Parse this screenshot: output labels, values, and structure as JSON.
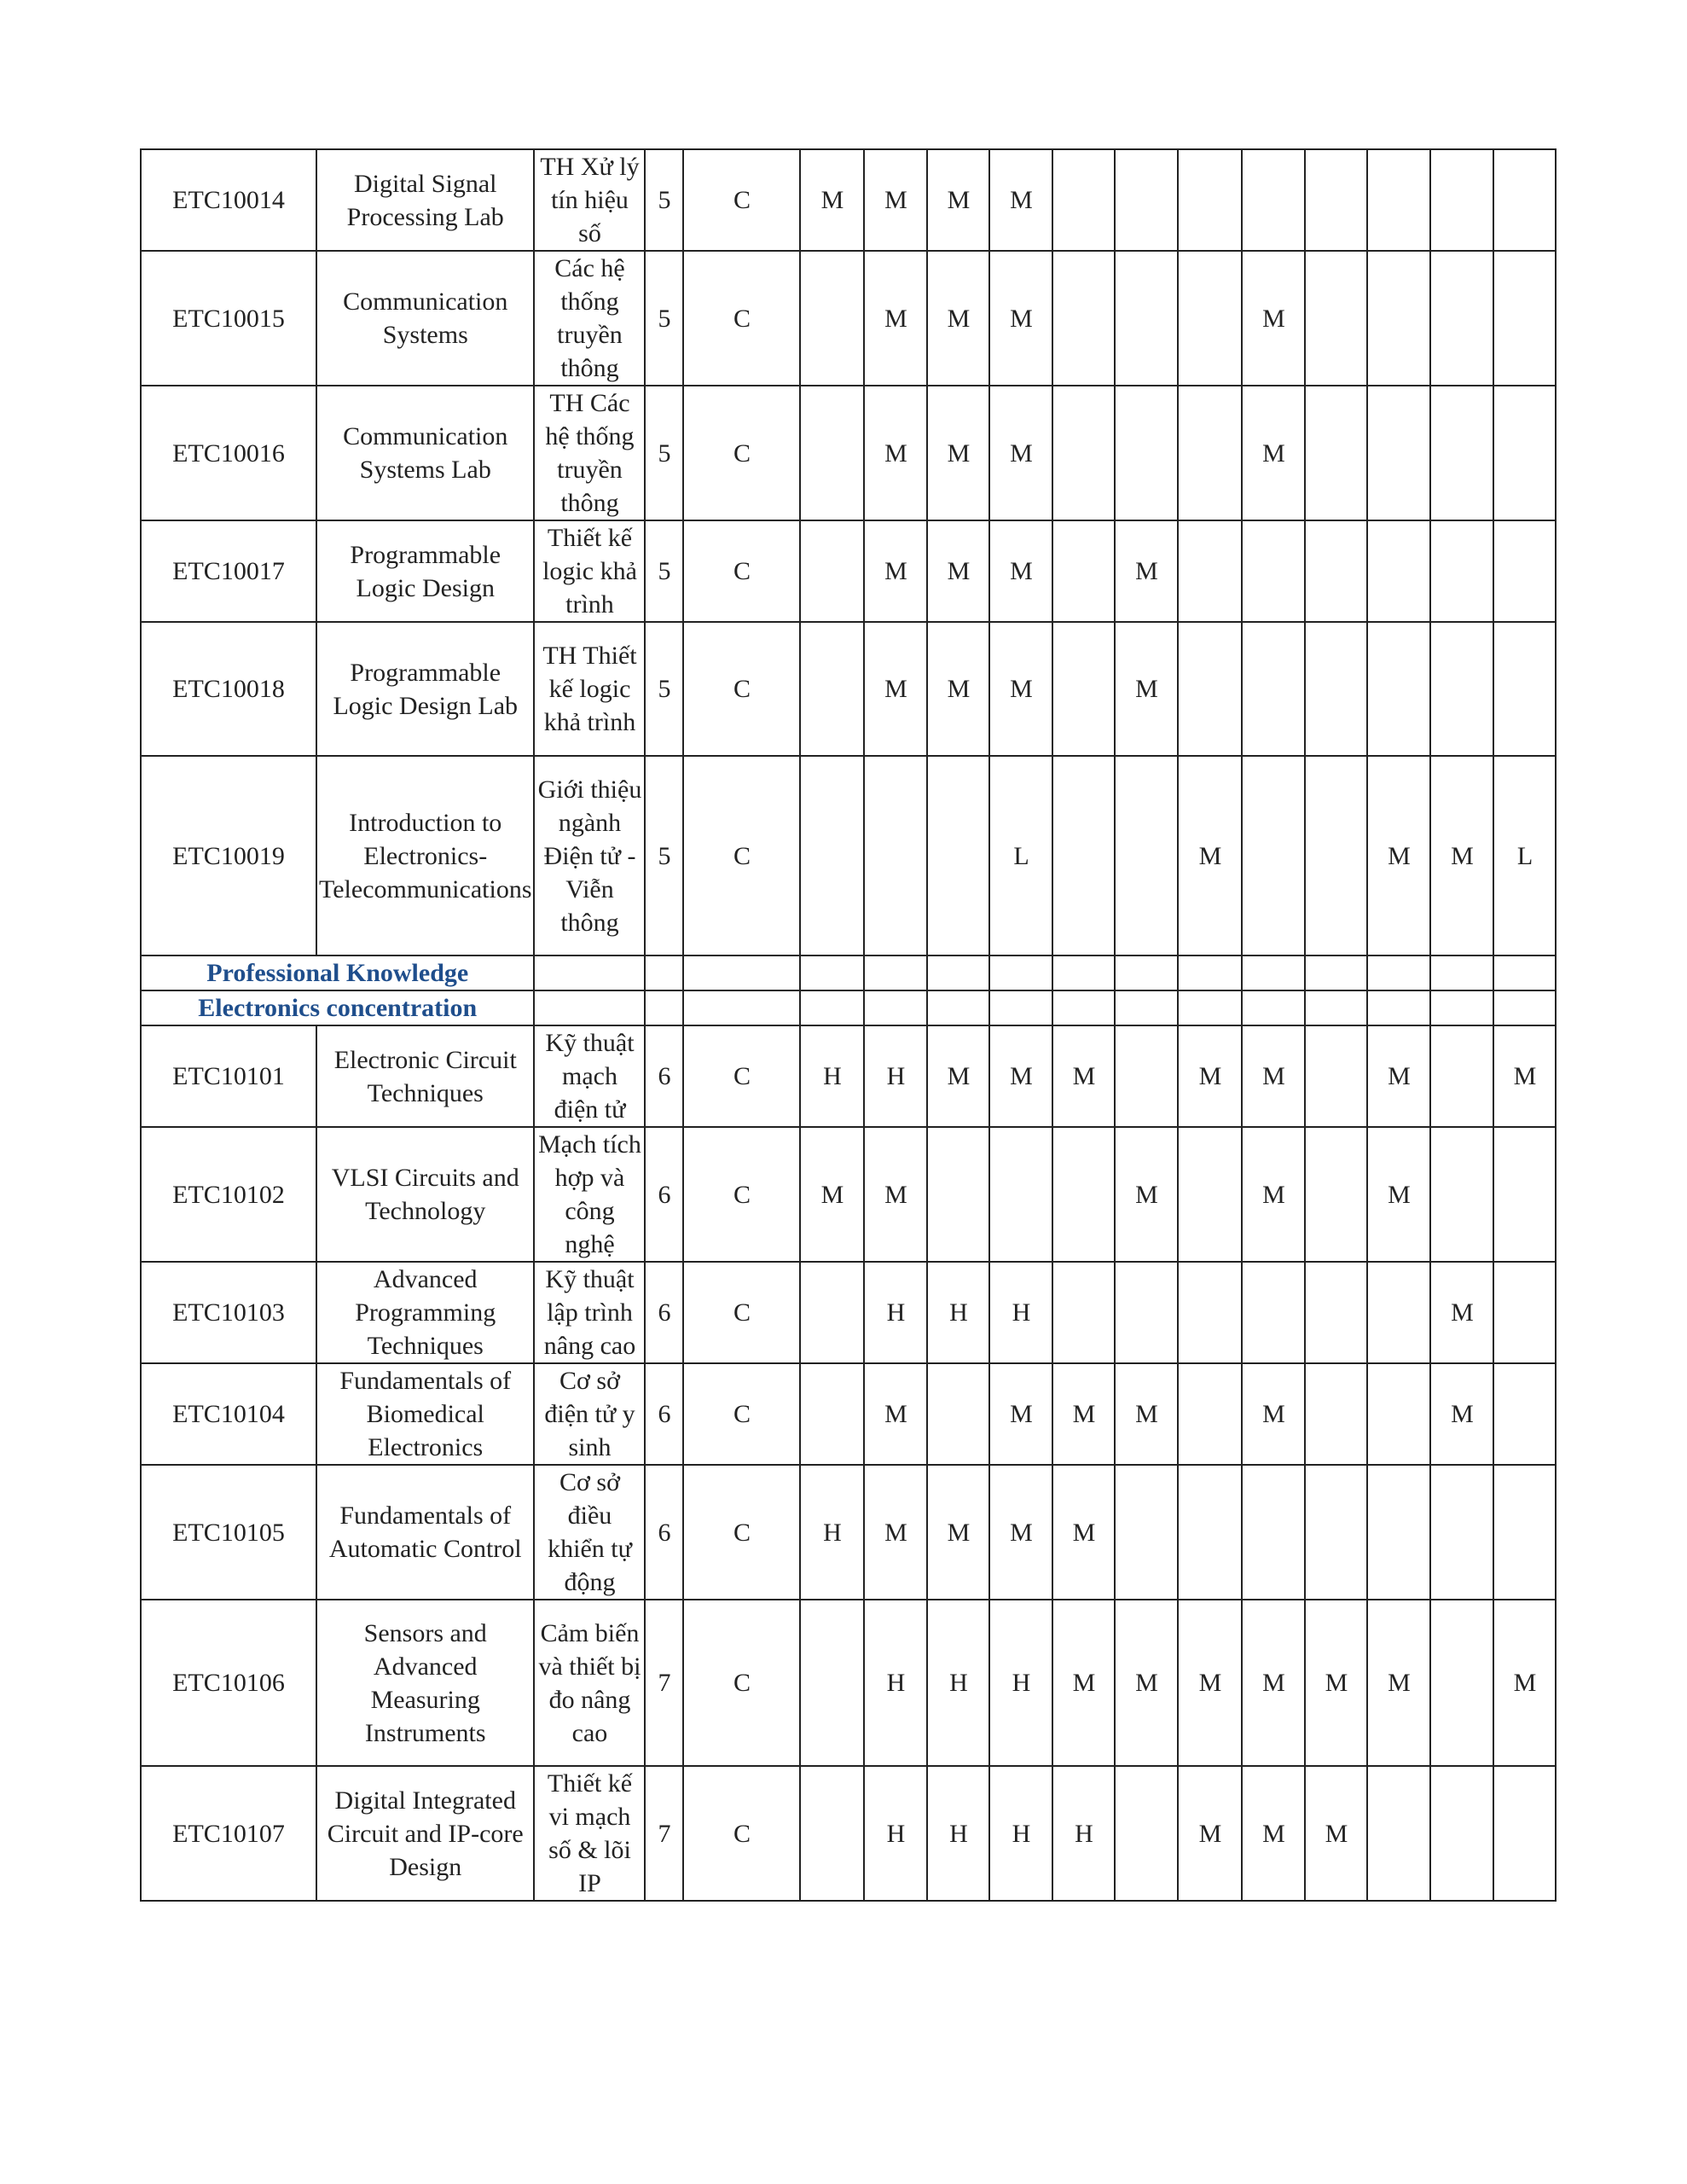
{
  "colors": {
    "section_heading": "#1f4e8c",
    "border": "#222222"
  },
  "rows": [
    {
      "type": "course",
      "code": "ETC10014",
      "en": "Digital Signal Processing Lab",
      "vi": "TH Xử lý tín hiệu số",
      "semester": "5",
      "category": "C",
      "marks": [
        "M",
        "M",
        "M",
        "M",
        "",
        "",
        "",
        "",
        "",
        "",
        "",
        ""
      ]
    },
    {
      "type": "course",
      "code": "ETC10015",
      "en": "Communication Systems",
      "vi": "Các hệ thống truyền thông",
      "semester": "5",
      "category": "C",
      "marks": [
        "",
        "M",
        "M",
        "M",
        "",
        "",
        "",
        "M",
        "",
        "",
        "",
        ""
      ]
    },
    {
      "type": "course",
      "code": "ETC10016",
      "en": "Communication Systems Lab",
      "vi": "TH Các hệ thống truyền thông",
      "semester": "5",
      "category": "C",
      "marks": [
        "",
        "M",
        "M",
        "M",
        "",
        "",
        "",
        "M",
        "",
        "",
        "",
        ""
      ]
    },
    {
      "type": "course",
      "code": "ETC10017",
      "en": "Programmable Logic Design",
      "vi": "Thiết kế logic khả trình",
      "semester": "5",
      "category": "C",
      "marks": [
        "",
        "M",
        "M",
        "M",
        "",
        "M",
        "",
        "",
        "",
        "",
        "",
        ""
      ]
    },
    {
      "type": "course",
      "code": "ETC10018",
      "en": "Programmable Logic Design Lab",
      "vi": "TH Thiết kế logic khả trình",
      "semester": "5",
      "category": "C",
      "marks": [
        "",
        "M",
        "M",
        "M",
        "",
        "M",
        "",
        "",
        "",
        "",
        "",
        ""
      ]
    },
    {
      "type": "course",
      "code": "ETC10019",
      "en": "Introduction to Electronics-Telecommunications",
      "vi": "Giới thiệu ngành Điện tử - Viễn thông",
      "semester": "5",
      "category": "C",
      "marks": [
        "",
        "",
        "",
        "L",
        "",
        "",
        "M",
        "",
        "",
        "M",
        "M",
        "L"
      ]
    },
    {
      "type": "section",
      "label": "Professional Knowledge"
    },
    {
      "type": "section",
      "label": "Electronics concentration"
    },
    {
      "type": "course",
      "code": "ETC10101",
      "en": "Electronic Circuit Techniques",
      "vi": "Kỹ thuật mạch điện tử",
      "semester": "6",
      "category": "C",
      "marks": [
        "H",
        "H",
        "M",
        "M",
        "M",
        "",
        "M",
        "M",
        "",
        "M",
        "",
        "M"
      ]
    },
    {
      "type": "course",
      "code": "ETC10102",
      "en": "VLSI Circuits and Technology",
      "vi": "Mạch tích hợp và công nghệ",
      "semester": "6",
      "category": "C",
      "marks": [
        "M",
        "M",
        "",
        "",
        "",
        "M",
        "",
        "M",
        "",
        "M",
        "",
        ""
      ]
    },
    {
      "type": "course",
      "code": "ETC10103",
      "en": "Advanced Programming Techniques",
      "vi": "Kỹ thuật lập trình nâng cao",
      "semester": "6",
      "category": "C",
      "marks": [
        "",
        "H",
        "H",
        "H",
        "",
        "",
        "",
        "",
        "",
        "",
        "M",
        ""
      ]
    },
    {
      "type": "course",
      "code": "ETC10104",
      "en": "Fundamentals of Biomedical Electronics",
      "vi": "Cơ sở điện tử y sinh",
      "semester": "6",
      "category": "C",
      "marks": [
        "",
        "M",
        "",
        "M",
        "M",
        "M",
        "",
        "M",
        "",
        "",
        "M",
        ""
      ]
    },
    {
      "type": "course",
      "code": "ETC10105",
      "en": "Fundamentals of Automatic Control",
      "vi": "Cơ sở điều khiển tự động",
      "semester": "6",
      "category": "C",
      "marks": [
        "H",
        "M",
        "M",
        "M",
        "M",
        "",
        "",
        "",
        "",
        "",
        "",
        ""
      ]
    },
    {
      "type": "course",
      "code": "ETC10106",
      "en": "Sensors and Advanced Measuring Instruments",
      "vi": "Cảm biến và thiết bị đo nâng cao",
      "semester": "7",
      "category": "C",
      "marks": [
        "",
        "H",
        "H",
        "H",
        "M",
        "M",
        "M",
        "M",
        "M",
        "M",
        "",
        "M"
      ]
    },
    {
      "type": "course",
      "code": "ETC10107",
      "en": "Digital Integrated Circuit and IP-core Design",
      "vi": "Thiết kế vi mạch số & lõi IP",
      "semester": "7",
      "category": "C",
      "marks": [
        "",
        "H",
        "H",
        "H",
        "H",
        "",
        "M",
        "M",
        "M",
        "",
        "",
        ""
      ]
    }
  ]
}
